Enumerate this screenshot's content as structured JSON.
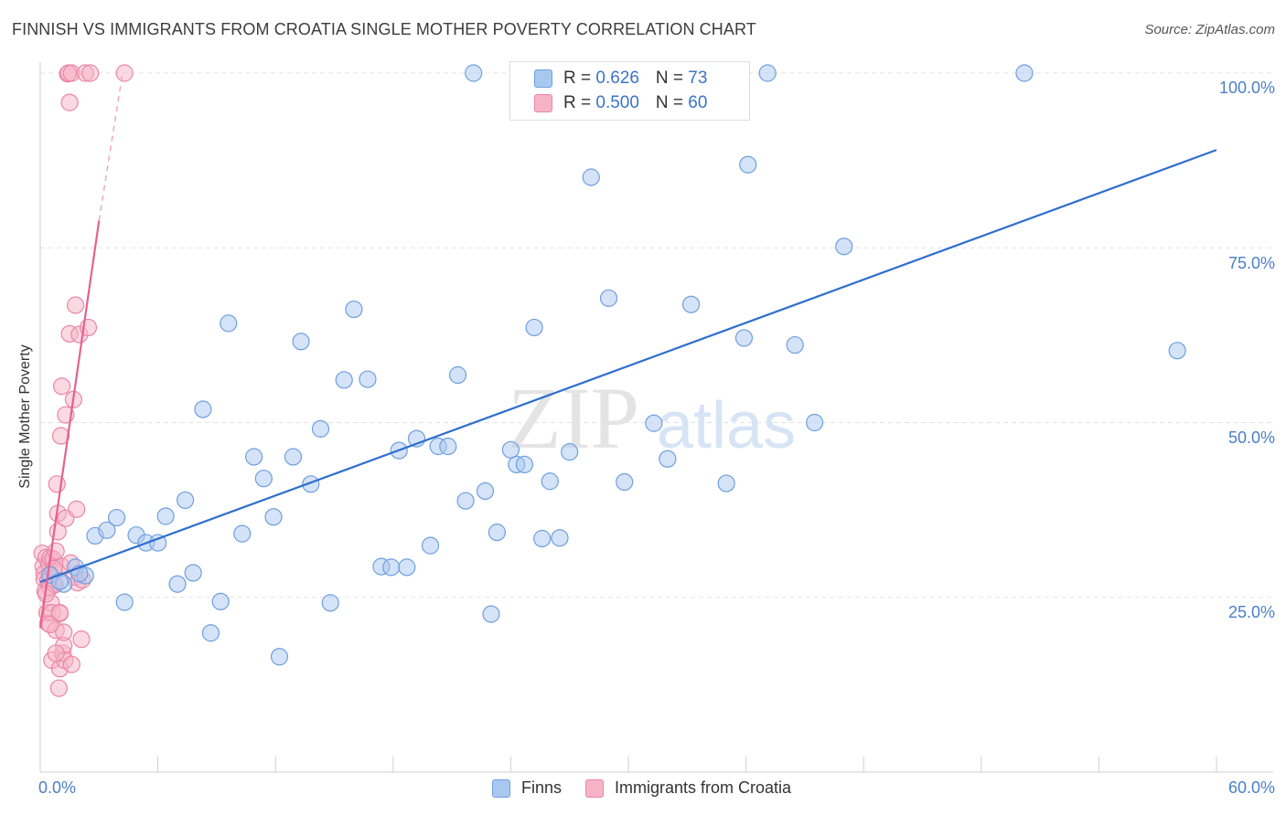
{
  "title": "FINNISH VS IMMIGRANTS FROM CROATIA SINGLE MOTHER POVERTY CORRELATION CHART",
  "source": "Source: ZipAtlas.com",
  "watermark": {
    "zip": "ZIP",
    "atlas": "atlas"
  },
  "colors": {
    "blue_fill": "#a9c8f0",
    "blue_stroke": "#6f9fde",
    "blue_line": "#2f6fcf",
    "pink_fill": "#f6b3c7",
    "pink_stroke": "#ea86a6",
    "pink_line": "#e4628e",
    "grid": "#e2e2e2",
    "tick_text": "#4a7fc8"
  },
  "legend_top": {
    "series": [
      {
        "r_label": "R = ",
        "r_value": "0.626",
        "n_label": "N = ",
        "n_value": "73"
      },
      {
        "r_label": "R = ",
        "r_value": "0.500",
        "n_label": "N = ",
        "n_value": "60"
      }
    ]
  },
  "chart_data": {
    "type": "scatter",
    "title": "FINNISH VS IMMIGRANTS FROM CROATIA SINGLE MOTHER POVERTY CORRELATION CHART",
    "xlabel": "",
    "ylabel": "Single Mother Poverty",
    "xlim": [
      0,
      60
    ],
    "ylim": [
      0,
      100
    ],
    "x_tick_labels": [
      "0.0%",
      "60.0%"
    ],
    "y_tick_labels": [
      "25.0%",
      "50.0%",
      "75.0%",
      "100.0%"
    ],
    "y_ticks": [
      25,
      50,
      75,
      100
    ],
    "series": [
      {
        "name": "Finns",
        "color": "blue",
        "regression": {
          "x0": 0,
          "y0": 27.2,
          "x1": 60,
          "y1": 89.0
        },
        "points": [
          [
            0.5,
            28.2
          ],
          [
            1.2,
            26.9
          ],
          [
            1.8,
            29.3
          ],
          [
            2.3,
            28.1
          ],
          [
            2.8,
            33.8
          ],
          [
            3.4,
            34.6
          ],
          [
            3.9,
            36.4
          ],
          [
            4.3,
            24.3
          ],
          [
            4.9,
            33.9
          ],
          [
            5.4,
            32.8
          ],
          [
            6.0,
            32.8
          ],
          [
            6.4,
            36.6
          ],
          [
            7.0,
            26.9
          ],
          [
            7.4,
            38.9
          ],
          [
            7.8,
            28.5
          ],
          [
            8.3,
            51.9
          ],
          [
            8.7,
            19.9
          ],
          [
            9.2,
            24.4
          ],
          [
            9.6,
            64.2
          ],
          [
            10.3,
            34.1
          ],
          [
            10.9,
            45.1
          ],
          [
            11.4,
            42.0
          ],
          [
            11.9,
            36.5
          ],
          [
            12.2,
            16.5
          ],
          [
            12.9,
            45.1
          ],
          [
            13.3,
            61.6
          ],
          [
            13.8,
            41.2
          ],
          [
            14.3,
            49.1
          ],
          [
            14.8,
            24.2
          ],
          [
            15.5,
            56.1
          ],
          [
            16.0,
            66.2
          ],
          [
            16.7,
            56.2
          ],
          [
            17.4,
            29.4
          ],
          [
            17.9,
            29.3
          ],
          [
            18.3,
            46.0
          ],
          [
            18.7,
            29.3
          ],
          [
            19.2,
            47.7
          ],
          [
            19.9,
            32.4
          ],
          [
            20.3,
            46.6
          ],
          [
            20.8,
            46.6
          ],
          [
            21.3,
            56.8
          ],
          [
            21.7,
            38.8
          ],
          [
            22.1,
            100.0
          ],
          [
            22.7,
            40.2
          ],
          [
            23.0,
            22.6
          ],
          [
            23.3,
            34.3
          ],
          [
            24.0,
            46.1
          ],
          [
            24.3,
            44.0
          ],
          [
            24.7,
            44.0
          ],
          [
            25.2,
            63.6
          ],
          [
            25.6,
            33.4
          ],
          [
            26.0,
            41.6
          ],
          [
            26.5,
            33.5
          ],
          [
            27.0,
            45.8
          ],
          [
            28.1,
            85.1
          ],
          [
            29.0,
            67.8
          ],
          [
            29.8,
            41.5
          ],
          [
            30.6,
            100.0
          ],
          [
            31.3,
            49.9
          ],
          [
            32.0,
            44.8
          ],
          [
            33.2,
            66.9
          ],
          [
            34.5,
            100.0
          ],
          [
            35.0,
            41.3
          ],
          [
            35.9,
            62.1
          ],
          [
            36.1,
            86.9
          ],
          [
            37.1,
            100.0
          ],
          [
            38.5,
            61.1
          ],
          [
            39.5,
            50.0
          ],
          [
            41.0,
            75.2
          ],
          [
            50.2,
            100.0
          ],
          [
            58.0,
            60.3
          ],
          [
            1.0,
            27.3
          ],
          [
            2.0,
            28.4
          ]
        ]
      },
      {
        "name": "Immigrants from Croatia",
        "color": "pink",
        "regression": {
          "x0": 0,
          "y0": 20.6,
          "x1": 3.0,
          "y1": 78.9,
          "dashed_to": {
            "x": 4.2,
            "y": 100.0
          }
        },
        "points": [
          [
            0.1,
            31.3
          ],
          [
            0.15,
            29.4
          ],
          [
            0.2,
            28.4
          ],
          [
            0.2,
            27.6
          ],
          [
            0.25,
            25.9
          ],
          [
            0.3,
            30.7
          ],
          [
            0.35,
            22.8
          ],
          [
            0.4,
            27.3
          ],
          [
            0.4,
            21.3
          ],
          [
            0.45,
            29.8
          ],
          [
            0.5,
            26.4
          ],
          [
            0.5,
            30.6
          ],
          [
            0.55,
            24.2
          ],
          [
            0.6,
            16.0
          ],
          [
            0.6,
            22.8
          ],
          [
            0.65,
            30.5
          ],
          [
            0.7,
            28.6
          ],
          [
            0.7,
            27.0
          ],
          [
            0.75,
            26.8
          ],
          [
            0.8,
            31.6
          ],
          [
            0.8,
            20.3
          ],
          [
            0.85,
            41.2
          ],
          [
            0.9,
            37.0
          ],
          [
            0.9,
            34.4
          ],
          [
            0.95,
            12.0
          ],
          [
            1.0,
            14.8
          ],
          [
            1.0,
            22.7
          ],
          [
            1.05,
            48.1
          ],
          [
            1.1,
            55.2
          ],
          [
            1.1,
            29.4
          ],
          [
            1.15,
            17.0
          ],
          [
            1.2,
            18.1
          ],
          [
            1.2,
            20.0
          ],
          [
            1.25,
            16.0
          ],
          [
            1.3,
            51.1
          ],
          [
            1.3,
            36.3
          ],
          [
            1.4,
            99.9
          ],
          [
            1.45,
            100.0
          ],
          [
            1.5,
            95.8
          ],
          [
            1.5,
            62.7
          ],
          [
            1.55,
            29.9
          ],
          [
            1.6,
            100.0
          ],
          [
            1.6,
            15.4
          ],
          [
            1.7,
            53.3
          ],
          [
            1.75,
            27.9
          ],
          [
            1.8,
            66.8
          ],
          [
            1.85,
            37.6
          ],
          [
            1.9,
            27.1
          ],
          [
            2.0,
            62.6
          ],
          [
            2.1,
            19.0
          ],
          [
            2.15,
            27.5
          ],
          [
            2.3,
            100.0
          ],
          [
            2.45,
            63.6
          ],
          [
            2.55,
            100.0
          ],
          [
            4.3,
            100.0
          ],
          [
            0.3,
            25.5
          ],
          [
            0.5,
            21.1
          ],
          [
            0.7,
            29.1
          ],
          [
            1.0,
            22.8
          ],
          [
            0.8,
            17.0
          ]
        ]
      }
    ]
  },
  "legend_bottom": {
    "items": [
      "Finns",
      "Immigrants from Croatia"
    ]
  }
}
